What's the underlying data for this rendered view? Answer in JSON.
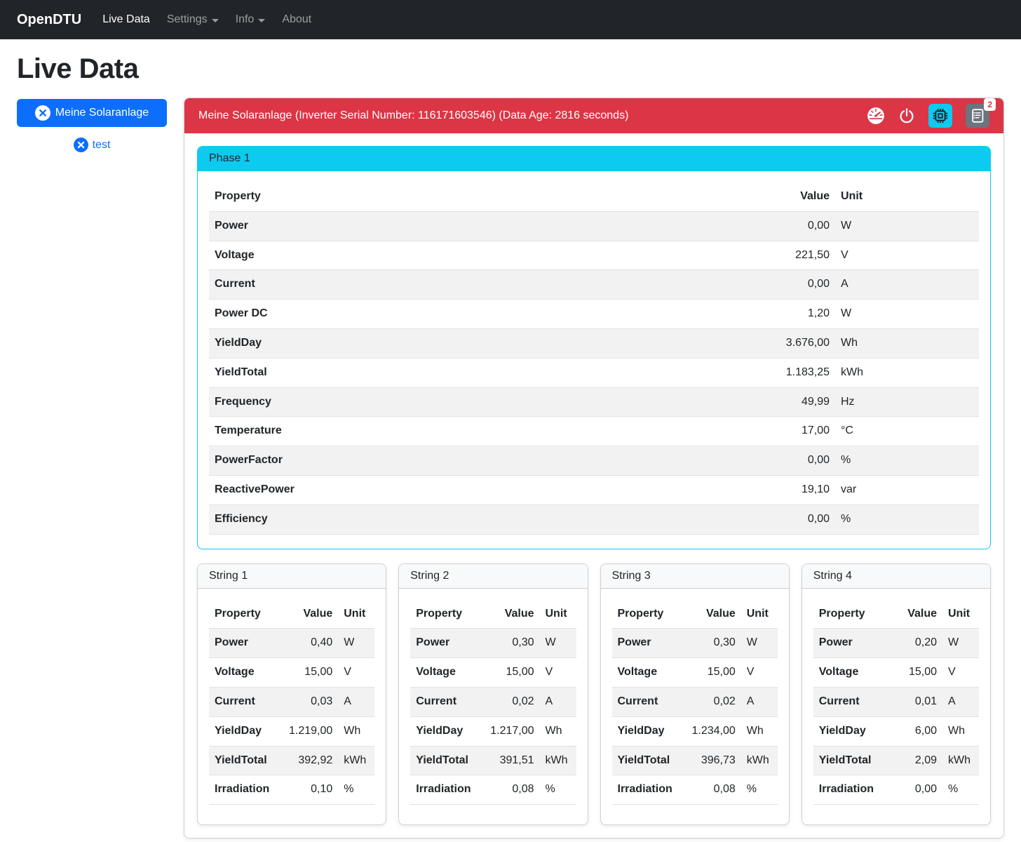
{
  "navbar": {
    "brand": "OpenDTU",
    "items": [
      {
        "label": "Live Data",
        "active": true,
        "dropdown": false
      },
      {
        "label": "Settings",
        "active": false,
        "dropdown": true
      },
      {
        "label": "Info",
        "active": false,
        "dropdown": true
      },
      {
        "label": "About",
        "active": false,
        "dropdown": false
      }
    ]
  },
  "page": {
    "title": "Live Data"
  },
  "sidebar": {
    "inverters": [
      {
        "label": "Meine Solaranlage"
      },
      {
        "label": "test"
      }
    ]
  },
  "inverter_panel": {
    "title": "Meine Solaranlage (Inverter Serial Number: 116171603546) (Data Age: 2816 seconds)",
    "badge_count": "2"
  },
  "phase": {
    "title": "Phase 1",
    "columns": [
      "Property",
      "Value",
      "Unit"
    ],
    "rows": [
      {
        "property": "Power",
        "value": "0,00",
        "unit": "W"
      },
      {
        "property": "Voltage",
        "value": "221,50",
        "unit": "V"
      },
      {
        "property": "Current",
        "value": "0,00",
        "unit": "A"
      },
      {
        "property": "Power DC",
        "value": "1,20",
        "unit": "W"
      },
      {
        "property": "YieldDay",
        "value": "3.676,00",
        "unit": "Wh"
      },
      {
        "property": "YieldTotal",
        "value": "1.183,25",
        "unit": "kWh"
      },
      {
        "property": "Frequency",
        "value": "49,99",
        "unit": "Hz"
      },
      {
        "property": "Temperature",
        "value": "17,00",
        "unit": "°C"
      },
      {
        "property": "PowerFactor",
        "value": "0,00",
        "unit": "%"
      },
      {
        "property": "ReactivePower",
        "value": "19,10",
        "unit": "var"
      },
      {
        "property": "Efficiency",
        "value": "0,00",
        "unit": "%"
      }
    ]
  },
  "strings": [
    {
      "title": "String 1",
      "columns": [
        "Property",
        "Value",
        "Unit"
      ],
      "rows": [
        {
          "property": "Power",
          "value": "0,40",
          "unit": "W"
        },
        {
          "property": "Voltage",
          "value": "15,00",
          "unit": "V"
        },
        {
          "property": "Current",
          "value": "0,03",
          "unit": "A"
        },
        {
          "property": "YieldDay",
          "value": "1.219,00",
          "unit": "Wh"
        },
        {
          "property": "YieldTotal",
          "value": "392,92",
          "unit": "kWh"
        },
        {
          "property": "Irradiation",
          "value": "0,10",
          "unit": "%"
        }
      ]
    },
    {
      "title": "String 2",
      "columns": [
        "Property",
        "Value",
        "Unit"
      ],
      "rows": [
        {
          "property": "Power",
          "value": "0,30",
          "unit": "W"
        },
        {
          "property": "Voltage",
          "value": "15,00",
          "unit": "V"
        },
        {
          "property": "Current",
          "value": "0,02",
          "unit": "A"
        },
        {
          "property": "YieldDay",
          "value": "1.217,00",
          "unit": "Wh"
        },
        {
          "property": "YieldTotal",
          "value": "391,51",
          "unit": "kWh"
        },
        {
          "property": "Irradiation",
          "value": "0,08",
          "unit": "%"
        }
      ]
    },
    {
      "title": "String 3",
      "columns": [
        "Property",
        "Value",
        "Unit"
      ],
      "rows": [
        {
          "property": "Power",
          "value": "0,30",
          "unit": "W"
        },
        {
          "property": "Voltage",
          "value": "15,00",
          "unit": "V"
        },
        {
          "property": "Current",
          "value": "0,02",
          "unit": "A"
        },
        {
          "property": "YieldDay",
          "value": "1.234,00",
          "unit": "Wh"
        },
        {
          "property": "YieldTotal",
          "value": "396,73",
          "unit": "kWh"
        },
        {
          "property": "Irradiation",
          "value": "0,08",
          "unit": "%"
        }
      ]
    },
    {
      "title": "String 4",
      "columns": [
        "Property",
        "Value",
        "Unit"
      ],
      "rows": [
        {
          "property": "Power",
          "value": "0,20",
          "unit": "W"
        },
        {
          "property": "Voltage",
          "value": "15,00",
          "unit": "V"
        },
        {
          "property": "Current",
          "value": "0,01",
          "unit": "A"
        },
        {
          "property": "YieldDay",
          "value": "6,00",
          "unit": "Wh"
        },
        {
          "property": "YieldTotal",
          "value": "2,09",
          "unit": "kWh"
        },
        {
          "property": "Irradiation",
          "value": "0,00",
          "unit": "%"
        }
      ]
    }
  ],
  "colors": {
    "navbar_bg": "#212529",
    "danger": "#dc3545",
    "info": "#0dcaf0",
    "primary": "#0d6efd",
    "secondary": "#6c757d",
    "table_border": "#dee2e6",
    "card_header_bg": "#f8f9fa"
  }
}
